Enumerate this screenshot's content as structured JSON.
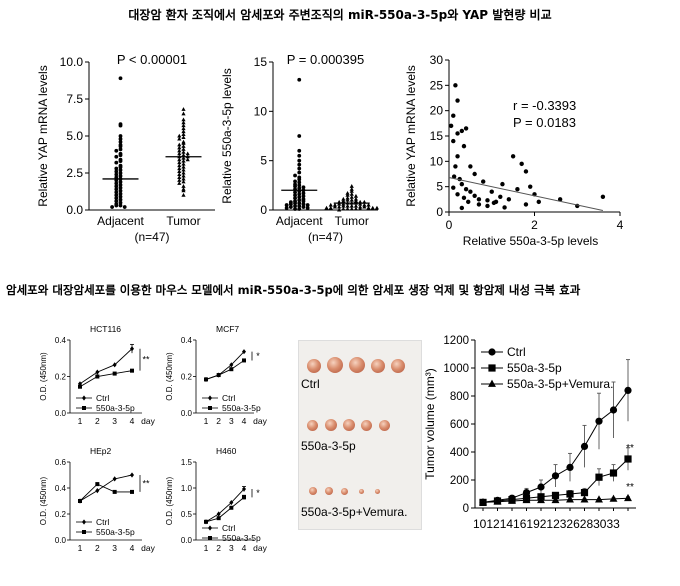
{
  "headings": {
    "title1": "대장암 환자 조직에서 암세포와 주변조직의 miR-550a-3-5p와  YAP 발현량 비교",
    "title2": "암세포와 대장암세포를 이용한 마우스 모델에서 miR-550a-3-5p에  의한 암세포 생장 억제 및 항암제 내성 극복 효과"
  },
  "colors": {
    "ink": "#000000",
    "line": "#555555",
    "axis": "#000000"
  },
  "chart_data": [
    {
      "id": "yap-scatter",
      "type": "scatter",
      "title": "",
      "ylabel": "Relative YAP mRNA levels",
      "xlabel": "",
      "categories": [
        "Adjacent",
        "Tumor"
      ],
      "n_label": "(n=47)",
      "annotation": "P < 0.00001",
      "ylim": [
        0,
        10
      ],
      "yticks": [
        "0.0",
        "2.5",
        "5.0",
        "7.5",
        "10.0"
      ],
      "series": [
        {
          "marker": "circle",
          "median": 2.1,
          "values": [
            8.9,
            5.8,
            5.7,
            5.0,
            4.8,
            4.6,
            4.4,
            4.3,
            4.1,
            4.0,
            3.8,
            3.7,
            3.6,
            3.4,
            3.3,
            3.2,
            3.0,
            2.9,
            2.8,
            2.7,
            2.6,
            2.5,
            2.4,
            2.3,
            2.2,
            2.1,
            2.0,
            1.9,
            1.8,
            1.7,
            1.6,
            1.5,
            1.4,
            1.3,
            1.2,
            1.1,
            1.0,
            0.9,
            0.8,
            0.7,
            0.6,
            0.5,
            0.4,
            0.3,
            0.3,
            0.2,
            0.2
          ]
        },
        {
          "marker": "triangle",
          "median": 3.6,
          "values": [
            6.8,
            6.5,
            6.1,
            5.9,
            5.7,
            5.5,
            5.3,
            5.1,
            5.0,
            4.9,
            4.8,
            4.6,
            4.5,
            4.4,
            4.3,
            4.2,
            4.1,
            4.0,
            3.9,
            3.8,
            3.8,
            3.7,
            3.6,
            3.6,
            3.5,
            3.4,
            3.4,
            3.3,
            3.2,
            3.1,
            3.0,
            2.9,
            2.8,
            2.7,
            2.6,
            2.5,
            2.4,
            2.3,
            2.2,
            2.1,
            2.0,
            1.9,
            1.8,
            1.6,
            1.4,
            1.3,
            1.0
          ]
        }
      ]
    },
    {
      "id": "mir-scatter",
      "type": "scatter",
      "title": "",
      "ylabel": "Relative 550a-3-5p levels",
      "xlabel": "",
      "categories": [
        "Adjacent",
        "Tumor"
      ],
      "n_label": "(n=47)",
      "annotation": "P = 0.000395",
      "ylim": [
        0,
        15
      ],
      "yticks": [
        "0",
        "5",
        "10",
        "15"
      ],
      "series": [
        {
          "marker": "circle",
          "median": 2.0,
          "values": [
            13.2,
            7.5,
            6.0,
            5.5,
            5.0,
            4.6,
            4.2,
            3.8,
            3.5,
            3.3,
            3.1,
            2.9,
            2.8,
            2.6,
            2.5,
            2.4,
            2.3,
            2.2,
            2.1,
            2.0,
            1.9,
            1.8,
            1.7,
            1.6,
            1.5,
            1.4,
            1.3,
            1.2,
            1.1,
            1.0,
            0.9,
            0.9,
            0.8,
            0.7,
            0.7,
            0.6,
            0.6,
            0.5,
            0.5,
            0.4,
            0.4,
            0.3,
            0.3,
            0.2,
            0.2,
            0.1,
            0.1
          ]
        },
        {
          "marker": "triangle",
          "median": 0.7,
          "values": [
            2.4,
            2.1,
            1.9,
            1.7,
            1.6,
            1.5,
            1.4,
            1.3,
            1.2,
            1.1,
            1.1,
            1.0,
            1.0,
            0.9,
            0.9,
            0.8,
            0.8,
            0.8,
            0.7,
            0.7,
            0.7,
            0.6,
            0.6,
            0.6,
            0.5,
            0.5,
            0.5,
            0.5,
            0.4,
            0.4,
            0.4,
            0.4,
            0.3,
            0.3,
            0.3,
            0.3,
            0.2,
            0.2,
            0.2,
            0.2,
            0.2,
            0.1,
            0.1,
            0.1,
            0.1,
            0.1,
            0.0
          ]
        }
      ]
    },
    {
      "id": "correlation",
      "type": "scatter",
      "title": "",
      "ylabel": "Relative YAP mRNA levels",
      "xlabel": "Relative 550a-3-5p levels",
      "annotation_r": "r = -0.3393",
      "annotation_p": "P = 0.0183",
      "xlim": [
        0,
        4
      ],
      "ylim": [
        0,
        30
      ],
      "xticks": [
        "0",
        "2",
        "4"
      ],
      "yticks": [
        "0",
        "5",
        "10",
        "15",
        "20",
        "25",
        "30"
      ],
      "fit_line": [
        [
          0,
          6.8
        ],
        [
          3.6,
          0.3
        ]
      ],
      "points": [
        [
          0.15,
          25
        ],
        [
          0.2,
          22
        ],
        [
          0.1,
          19
        ],
        [
          0.05,
          17
        ],
        [
          0.3,
          16
        ],
        [
          0.2,
          15.5
        ],
        [
          0.4,
          16.5
        ],
        [
          0.1,
          14
        ],
        [
          0.35,
          13
        ],
        [
          0.2,
          11
        ],
        [
          0.15,
          9
        ],
        [
          0.25,
          6.5
        ],
        [
          0.3,
          5.5
        ],
        [
          0.1,
          4.8
        ],
        [
          0.4,
          4.5
        ],
        [
          0.5,
          4
        ],
        [
          0.2,
          3.5
        ],
        [
          0.6,
          3.2
        ],
        [
          0.35,
          2.8
        ],
        [
          0.7,
          2.5
        ],
        [
          0.9,
          2.3
        ],
        [
          1.0,
          4
        ],
        [
          1.2,
          3
        ],
        [
          1.1,
          2
        ],
        [
          1.4,
          2.5
        ],
        [
          1.6,
          4.5
        ],
        [
          1.5,
          11
        ],
        [
          1.7,
          9.5
        ],
        [
          1.8,
          8
        ],
        [
          1.9,
          5
        ],
        [
          2.0,
          3.5
        ],
        [
          2.1,
          2.0
        ],
        [
          1.8,
          1.5
        ],
        [
          0.6,
          7.5
        ],
        [
          0.8,
          6.0
        ],
        [
          0.5,
          9
        ],
        [
          0.9,
          1.2
        ],
        [
          0.3,
          0.8
        ],
        [
          1.3,
          0.9
        ],
        [
          2.6,
          2.5
        ],
        [
          3.0,
          1.2
        ],
        [
          3.6,
          3.0
        ],
        [
          0.7,
          1.5
        ],
        [
          0.45,
          2.0
        ],
        [
          1.05,
          1.8
        ],
        [
          1.25,
          5.5
        ],
        [
          0.12,
          7.0
        ]
      ]
    },
    {
      "id": "hct116",
      "type": "line",
      "title": "HCT116",
      "ylabel": "O.D. (450nm)",
      "xlabel": "day",
      "x": [
        1,
        2,
        3,
        4
      ],
      "xticks": [
        "1",
        "2",
        "3",
        "4"
      ],
      "ylim": [
        0,
        0.5
      ],
      "yticks": [
        "0.0",
        "0.2",
        "0.4"
      ],
      "legend": [
        "Ctrl",
        "550a-3-5p"
      ],
      "significance": "**",
      "series": [
        {
          "name": "Ctrl",
          "marker": "diamond",
          "values": [
            0.2,
            0.28,
            0.33,
            0.44
          ],
          "err": [
            0.0,
            0.0,
            0.0,
            0.03
          ]
        },
        {
          "name": "550a-3-5p",
          "marker": "square",
          "values": [
            0.18,
            0.25,
            0.27,
            0.29
          ],
          "err": [
            0,
            0,
            0,
            0
          ]
        }
      ]
    },
    {
      "id": "mcf7",
      "type": "line",
      "title": "MCF7",
      "ylabel": "O.D. (450nm)",
      "xlabel": "day",
      "x": [
        1,
        2,
        3,
        4
      ],
      "xticks": [
        "1",
        "2",
        "3",
        "4"
      ],
      "ylim": [
        0,
        0.5
      ],
      "yticks": [
        "0.0",
        "0.2",
        "0.4"
      ],
      "legend": [
        "Ctrl",
        "550a-3-5p"
      ],
      "significance": "*",
      "series": [
        {
          "name": "Ctrl",
          "marker": "diamond",
          "values": [
            0.23,
            0.26,
            0.33,
            0.42
          ],
          "err": [
            0,
            0,
            0,
            0
          ]
        },
        {
          "name": "550a-3-5p",
          "marker": "square",
          "values": [
            0.23,
            0.26,
            0.3,
            0.36
          ],
          "err": [
            0,
            0,
            0,
            0
          ]
        }
      ]
    },
    {
      "id": "hep2",
      "type": "line",
      "title": "HEp2",
      "ylabel": "O.D. (450nm)",
      "xlabel": "day",
      "x": [
        1,
        2,
        3,
        4
      ],
      "xticks": [
        "1",
        "2",
        "3",
        "4"
      ],
      "ylim": [
        0,
        0.6
      ],
      "yticks": [
        "0.0",
        "0.2",
        "0.4",
        "0.6"
      ],
      "legend": [
        "Ctrl",
        "550a-3-5p"
      ],
      "significance": "**",
      "series": [
        {
          "name": "Ctrl",
          "marker": "diamond",
          "values": [
            0.3,
            0.38,
            0.47,
            0.5
          ],
          "err": [
            0,
            0,
            0,
            0
          ]
        },
        {
          "name": "550a-3-5p",
          "marker": "square",
          "values": [
            0.3,
            0.43,
            0.37,
            0.37
          ],
          "err": [
            0,
            0,
            0,
            0
          ]
        }
      ]
    },
    {
      "id": "h460",
      "type": "line",
      "title": "H460",
      "ylabel": "O.D. (450nm)",
      "xlabel": "day",
      "x": [
        1,
        2,
        3,
        4
      ],
      "xticks": [
        "1",
        "2",
        "3",
        "4"
      ],
      "ylim": [
        0,
        1.5
      ],
      "yticks": [
        "0.0",
        "0.5",
        "1.0",
        "1.5"
      ],
      "legend": [
        "Ctrl",
        "550a-3-5p"
      ],
      "significance": "*",
      "series": [
        {
          "name": "Ctrl",
          "marker": "diamond",
          "values": [
            0.35,
            0.5,
            0.72,
            0.98
          ],
          "err": [
            0,
            0,
            0,
            0.05
          ]
        },
        {
          "name": "550a-3-5p",
          "marker": "square",
          "values": [
            0.35,
            0.42,
            0.62,
            0.82
          ],
          "err": [
            0,
            0,
            0,
            0.04
          ]
        }
      ]
    },
    {
      "id": "tumor-volume",
      "type": "line",
      "title": "",
      "ylabel": "Tumor volume (mm³)",
      "xlabel": "",
      "x": [
        10,
        12,
        14,
        16,
        19,
        21,
        23,
        26,
        28,
        30,
        33
      ],
      "xticks": [
        "10",
        "12",
        "14",
        "16",
        "19",
        "21",
        "23",
        "26",
        "28",
        "30",
        "33"
      ],
      "ylim": [
        0,
        1200
      ],
      "yticks": [
        "0",
        "200",
        "400",
        "600",
        "800",
        "1000",
        "1200"
      ],
      "legend": [
        "Ctrl",
        "550a-3-5p",
        "550a-3-5p+Vemura."
      ],
      "significance": [
        "**",
        "**"
      ],
      "series": [
        {
          "name": "Ctrl",
          "marker": "circle",
          "values": [
            40,
            55,
            70,
            110,
            150,
            230,
            290,
            440,
            620,
            700,
            840
          ],
          "err": [
            10,
            15,
            20,
            30,
            50,
            80,
            100,
            150,
            200,
            200,
            220
          ]
        },
        {
          "name": "550a-3-5p",
          "marker": "square",
          "values": [
            40,
            50,
            60,
            70,
            80,
            90,
            100,
            110,
            220,
            250,
            350
          ],
          "err": [
            8,
            10,
            12,
            15,
            20,
            20,
            25,
            30,
            60,
            60,
            80
          ]
        },
        {
          "name": "550a-3-5p+Vemura.",
          "marker": "triangle",
          "values": [
            40,
            45,
            50,
            55,
            55,
            55,
            60,
            60,
            60,
            65,
            70
          ],
          "err": [
            5,
            5,
            5,
            6,
            6,
            6,
            6,
            6,
            6,
            8,
            10
          ]
        }
      ]
    }
  ],
  "photo": {
    "labels": [
      "Ctrl",
      "550a-3-5p",
      "550a-3-5p+Vemura."
    ]
  }
}
